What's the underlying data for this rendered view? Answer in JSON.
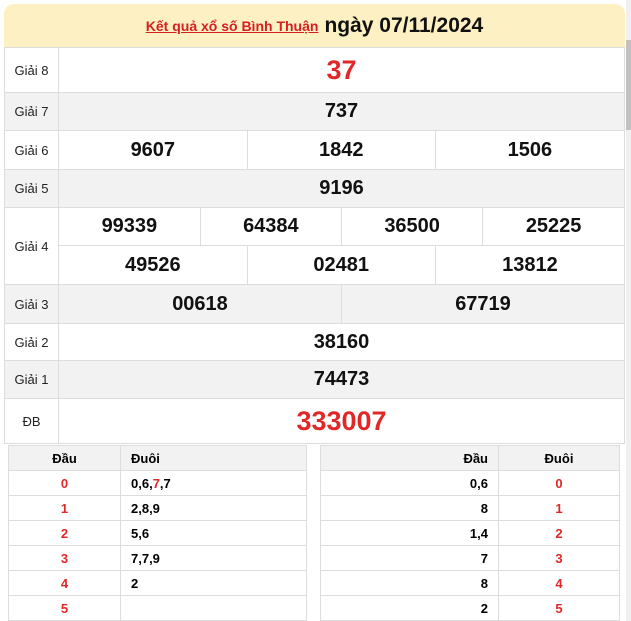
{
  "header": {
    "link": "Kết quả xổ số Bình Thuận",
    "date": "ngày 07/11/2024"
  },
  "prizes": [
    {
      "label": "Giải 8",
      "numbers": [
        "37"
      ]
    },
    {
      "label": "Giải 7",
      "numbers": [
        "737"
      ]
    },
    {
      "label": "Giải 6",
      "numbers": [
        "9607",
        "1842",
        "1506"
      ]
    },
    {
      "label": "Giải 5",
      "numbers": [
        "9196"
      ]
    },
    {
      "label": "Giải 4",
      "numbers": [
        "99339",
        "64384",
        "36500",
        "25225",
        "49526",
        "02481",
        "13812"
      ]
    },
    {
      "label": "Giải 3",
      "numbers": [
        "00618",
        "67719"
      ]
    },
    {
      "label": "Giải 2",
      "numbers": [
        "38160"
      ]
    },
    {
      "label": "Giải 1",
      "numbers": [
        "74473"
      ]
    },
    {
      "label": "ĐB",
      "numbers": [
        "333007"
      ]
    }
  ],
  "loto_left": {
    "headers": [
      "Đầu",
      "Đuôi"
    ],
    "rows": [
      {
        "head": "0",
        "tail": [
          [
            "0,6,",
            false
          ],
          [
            "7",
            true
          ],
          [
            ",7",
            false
          ]
        ]
      },
      {
        "head": "1",
        "tail": [
          [
            "2,8,9",
            false
          ]
        ]
      },
      {
        "head": "2",
        "tail": [
          [
            "5,6",
            false
          ]
        ]
      },
      {
        "head": "3",
        "tail": [
          [
            "7,7,9",
            false
          ]
        ]
      },
      {
        "head": "4",
        "tail": [
          [
            "2",
            false
          ]
        ]
      },
      {
        "head": "5",
        "tail": []
      }
    ]
  },
  "loto_right": {
    "headers": [
      "Đầu",
      "Đuôi"
    ],
    "rows": [
      {
        "head": "0,6",
        "tail": "0"
      },
      {
        "head": "8",
        "tail": "1"
      },
      {
        "head": "1,4",
        "tail": "2"
      },
      {
        "head": "7",
        "tail": "3"
      },
      {
        "head": "8",
        "tail": "4"
      },
      {
        "head": "2",
        "tail": "5"
      }
    ]
  },
  "colors": {
    "accent": "#e12828",
    "header_bg": "#fdf0c2"
  }
}
